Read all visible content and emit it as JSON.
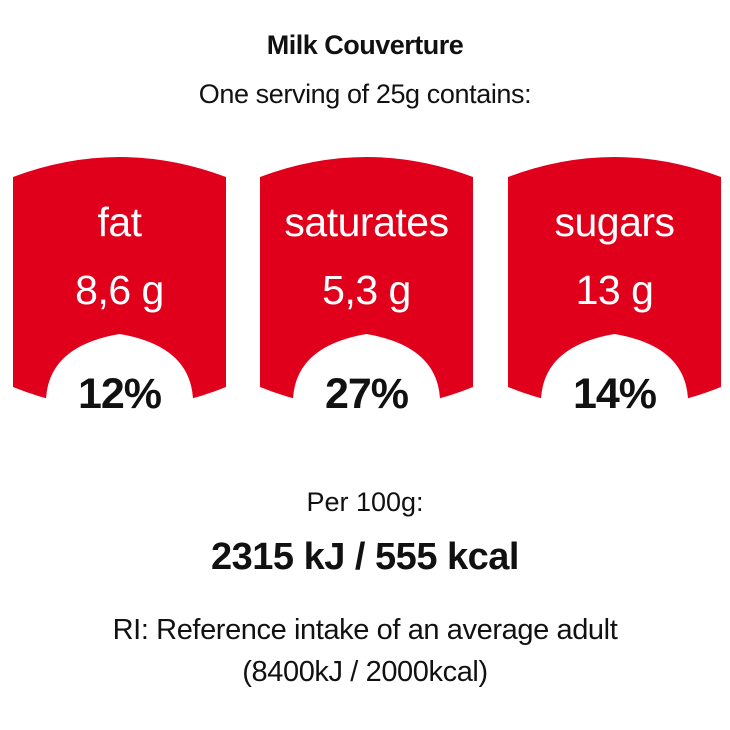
{
  "product": {
    "name": "Milk Couverture",
    "serving_text": "One serving of 25g contains:"
  },
  "nutrients": [
    {
      "name": "fat",
      "amount": "8,6 g",
      "ri_percent": "12%"
    },
    {
      "name": "saturates",
      "amount": "5,3 g",
      "ri_percent": "27%"
    },
    {
      "name": "sugars",
      "amount": "13 g",
      "ri_percent": "14%"
    }
  ],
  "per_100g": {
    "label": "Per 100g:",
    "energy": "2315 kJ / 555 kcal"
  },
  "reference": {
    "line1": "RI: Reference intake of an average adult",
    "line2": "(8400kJ / 2000kcal)"
  },
  "colors": {
    "panel_red": "#e0001b",
    "panel_white": "#ffffff",
    "text": "#111111"
  }
}
